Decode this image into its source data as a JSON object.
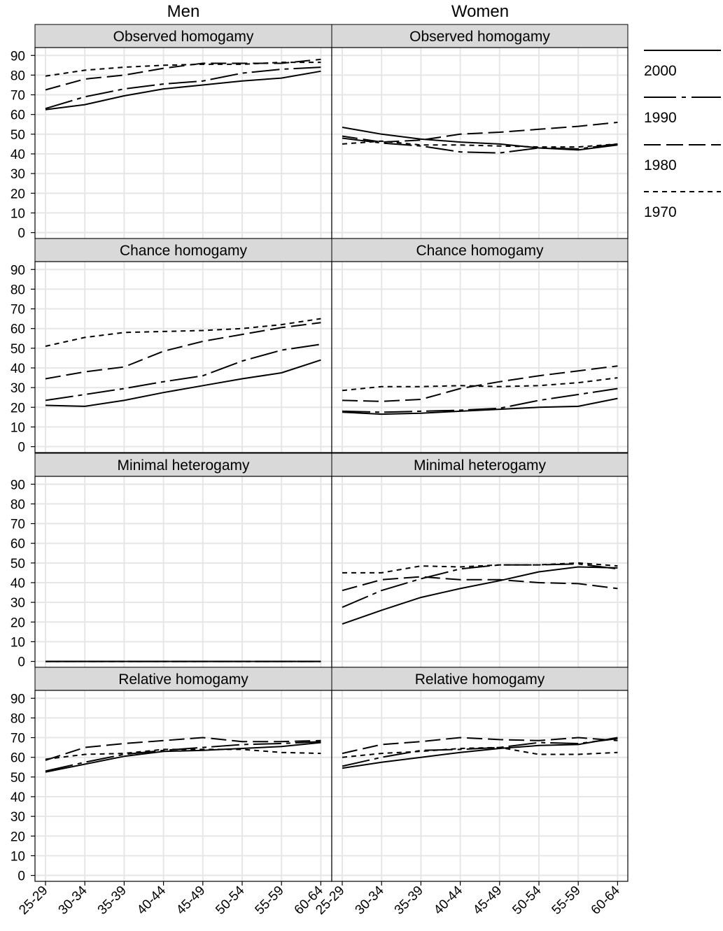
{
  "figure": {
    "column_headers": [
      "Men",
      "Women"
    ],
    "panel_titles": [
      "Observed homogamy",
      "Chance homogamy",
      "Minimal heterogamy",
      "Relative homogamy"
    ],
    "legend": [
      {
        "label": "2000",
        "dash": "solid"
      },
      {
        "label": "1990",
        "dash": "longdash-dot"
      },
      {
        "label": "1980",
        "dash": "longdash"
      },
      {
        "label": "1970",
        "dash": "shortdash"
      }
    ],
    "colors": {
      "line": "#000000",
      "strip": "#d9d9d9",
      "grid": "#e6e6e6",
      "background": "#ffffff"
    }
  },
  "chart_data": {
    "type": "line",
    "categories": [
      "25-29",
      "30-34",
      "35-39",
      "40-44",
      "45-49",
      "50-54",
      "55-59",
      "60-64"
    ],
    "ylim": [
      -3,
      94
    ],
    "yticks": [
      0,
      10,
      20,
      30,
      40,
      50,
      60,
      70,
      80,
      90
    ],
    "grid": true,
    "legend_position": "right",
    "panels": [
      {
        "row": "Observed homogamy",
        "column": "Men",
        "series": [
          {
            "name": "2000",
            "values": [
              62.5,
              65,
              69.5,
              73,
              75,
              77,
              78.5,
              82
            ]
          },
          {
            "name": "1990",
            "values": [
              63,
              69,
              73,
              75.5,
              77,
              81,
              83,
              84
            ]
          },
          {
            "name": "1980",
            "values": [
              72.5,
              78,
              80,
              83.5,
              86,
              86,
              86,
              88
            ]
          },
          {
            "name": "1970",
            "values": [
              79.5,
              82.5,
              84,
              85,
              85.5,
              85.5,
              86.5,
              86.5
            ]
          }
        ]
      },
      {
        "row": "Observed homogamy",
        "column": "Women",
        "series": [
          {
            "name": "2000",
            "values": [
              53.5,
              50,
              47.5,
              46,
              45,
              43,
              42,
              44.5
            ]
          },
          {
            "name": "1990",
            "values": [
              48,
              45.5,
              44,
              41,
              40.5,
              43,
              42.5,
              45
            ]
          },
          {
            "name": "1980",
            "values": [
              49,
              46,
              47,
              50,
              51,
              52.5,
              54,
              56
            ]
          },
          {
            "name": "1970",
            "values": [
              45,
              46.5,
              44.5,
              44.5,
              44,
              43.5,
              43.5,
              45
            ]
          }
        ]
      },
      {
        "row": "Chance homogamy",
        "column": "Men",
        "series": [
          {
            "name": "2000",
            "values": [
              21,
              20.5,
              23.5,
              27.5,
              31,
              34.5,
              37.5,
              44
            ]
          },
          {
            "name": "1990",
            "values": [
              23.5,
              26.5,
              29.5,
              33,
              36,
              43.5,
              49,
              52
            ]
          },
          {
            "name": "1980",
            "values": [
              34.5,
              38,
              40.5,
              48.5,
              53.5,
              57,
              60.5,
              63
            ]
          },
          {
            "name": "1970",
            "values": [
              51,
              55.5,
              58,
              58.5,
              59,
              60,
              62,
              65
            ]
          }
        ]
      },
      {
        "row": "Chance homogamy",
        "column": "Women",
        "series": [
          {
            "name": "2000",
            "values": [
              17.5,
              16.5,
              17,
              18,
              19,
              20,
              20.5,
              24.5
            ]
          },
          {
            "name": "1990",
            "values": [
              18,
              17.5,
              18,
              18.5,
              19.5,
              23.5,
              26.5,
              29.5
            ]
          },
          {
            "name": "1980",
            "values": [
              23.5,
              23,
              24,
              29.5,
              33,
              36,
              38.5,
              41
            ]
          },
          {
            "name": "1970",
            "values": [
              28.5,
              30.5,
              30.5,
              31,
              30.5,
              31,
              32.5,
              35
            ]
          }
        ]
      },
      {
        "row": "Minimal heterogamy",
        "column": "Men",
        "series": [
          {
            "name": "2000",
            "values": [
              0,
              0,
              0,
              0,
              0,
              0,
              0,
              0
            ]
          },
          {
            "name": "1990",
            "values": [
              0,
              0,
              0,
              0,
              0,
              0,
              0,
              0
            ]
          },
          {
            "name": "1980",
            "values": [
              0,
              0,
              0,
              0,
              0,
              0,
              0,
              0
            ]
          },
          {
            "name": "1970",
            "values": [
              0,
              0,
              0,
              0,
              0,
              0,
              0,
              0
            ]
          }
        ]
      },
      {
        "row": "Minimal heterogamy",
        "column": "Women",
        "series": [
          {
            "name": "2000",
            "values": [
              19,
              26,
              32.5,
              37,
              41,
              45.5,
              48,
              47.5
            ]
          },
          {
            "name": "1990",
            "values": [
              27.5,
              36,
              42,
              47,
              49,
              49,
              49.5,
              47
            ]
          },
          {
            "name": "1980",
            "values": [
              36,
              41.5,
              43,
              41.5,
              41.5,
              40,
              39.5,
              37
            ]
          },
          {
            "name": "1970",
            "values": [
              45,
              45,
              48.5,
              48,
              49,
              49,
              50,
              48.5
            ]
          }
        ]
      },
      {
        "row": "Relative homogamy",
        "column": "Men",
        "series": [
          {
            "name": "2000",
            "values": [
              52.5,
              56.5,
              60.5,
              63,
              63.5,
              64.5,
              65.5,
              67.5
            ]
          },
          {
            "name": "1990",
            "values": [
              53,
              57.5,
              61.5,
              63.5,
              65,
              66.5,
              67,
              68
            ]
          },
          {
            "name": "1980",
            "values": [
              58.5,
              65,
              67,
              68.5,
              70,
              68,
              68,
              68.5
            ]
          },
          {
            "name": "1970",
            "values": [
              59,
              61.5,
              62,
              64,
              64,
              64,
              62.5,
              62
            ]
          }
        ]
      },
      {
        "row": "Relative homogamy",
        "column": "Women",
        "series": [
          {
            "name": "2000",
            "values": [
              54.5,
              57.5,
              60,
              62.5,
              64.5,
              66,
              66.5,
              70
            ]
          },
          {
            "name": "1990",
            "values": [
              55.5,
              60,
              63.5,
              64,
              65,
              67.5,
              67,
              69.5
            ]
          },
          {
            "name": "1980",
            "values": [
              62,
              66.5,
              68,
              70,
              69,
              68.5,
              70,
              68.5
            ]
          },
          {
            "name": "1970",
            "values": [
              60,
              62,
              63,
              64.5,
              65,
              61.5,
              61.5,
              62.5
            ]
          }
        ]
      }
    ]
  }
}
